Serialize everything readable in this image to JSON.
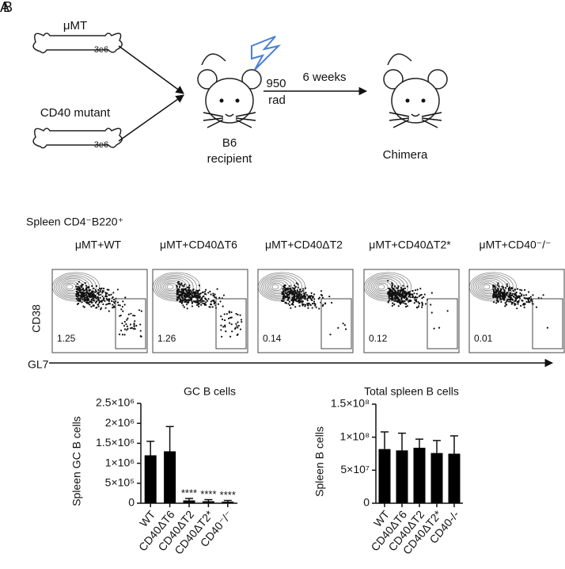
{
  "panel_labels": [
    "A",
    "B"
  ],
  "schematic": {
    "donor1": "μMT",
    "dose1": "3e6",
    "donor2": "CD40 mutant",
    "dose2": "3e6",
    "irradiation": {
      "dose": "950",
      "unit": "rad"
    },
    "recipient": {
      "strain": "B6",
      "role": "recipient"
    },
    "interval": "6 weeks",
    "result": "Chimera"
  },
  "flow": {
    "title": "Spleen CD4⁻B220⁺",
    "y_label": "CD38",
    "x_label": "GL7",
    "panels": [
      {
        "name": "μMT+WT",
        "gate": 1.25
      },
      {
        "name": "μMT+CD40ΔT6",
        "gate": 1.26
      },
      {
        "name": "μMT+CD40ΔT2",
        "gate": 0.14
      },
      {
        "name": "μMT+CD40ΔT2*",
        "gate": 0.12
      },
      {
        "name": "μMT+CD40⁻/⁻",
        "gate": 0.01
      }
    ]
  },
  "chart_data": [
    {
      "type": "bar",
      "title": "GC B cells",
      "y_label": "Spleen GC B cells",
      "categories": [
        "WT",
        "CD40ΔT6",
        "CD40ΔT2",
        "CD40ΔT2*",
        "CD40⁻/⁻"
      ],
      "values": [
        1200000,
        1300000,
        70000,
        50000,
        40000
      ],
      "errors": [
        350000,
        620000,
        50000,
        40000,
        30000
      ],
      "significance": [
        null,
        null,
        "****",
        "****",
        "****"
      ],
      "color": "#000000",
      "ylim": [
        0,
        2500000
      ],
      "yticks": [
        0,
        {
          "value": 500000,
          "label": "5×10⁵"
        },
        {
          "value": 1000000,
          "label": "1×10⁶"
        },
        {
          "value": 1500000,
          "label": "1.5×10⁶"
        },
        {
          "value": 2000000,
          "label": "2×10⁶"
        },
        {
          "value": 2500000,
          "label": "2.5×10⁶"
        }
      ]
    },
    {
      "type": "bar",
      "title": "Total spleen B cells",
      "y_label": "Spleen B cells",
      "categories": [
        "WT",
        "CD40ΔT6",
        "CD40ΔT2",
        "CD40ΔT2*",
        "CD40-/-"
      ],
      "values": [
        82000000,
        80000000,
        84000000,
        76000000,
        75000000
      ],
      "errors": [
        26000000,
        26000000,
        13000000,
        19000000,
        27000000
      ],
      "color": "#000000",
      "ylim": [
        0,
        150000000
      ],
      "yticks": [
        0,
        {
          "value": 50000000,
          "label": "5×10⁷"
        },
        {
          "value": 100000000,
          "label": "1×10⁸"
        },
        {
          "value": 150000000,
          "label": "1.5×10⁸"
        }
      ]
    }
  ]
}
